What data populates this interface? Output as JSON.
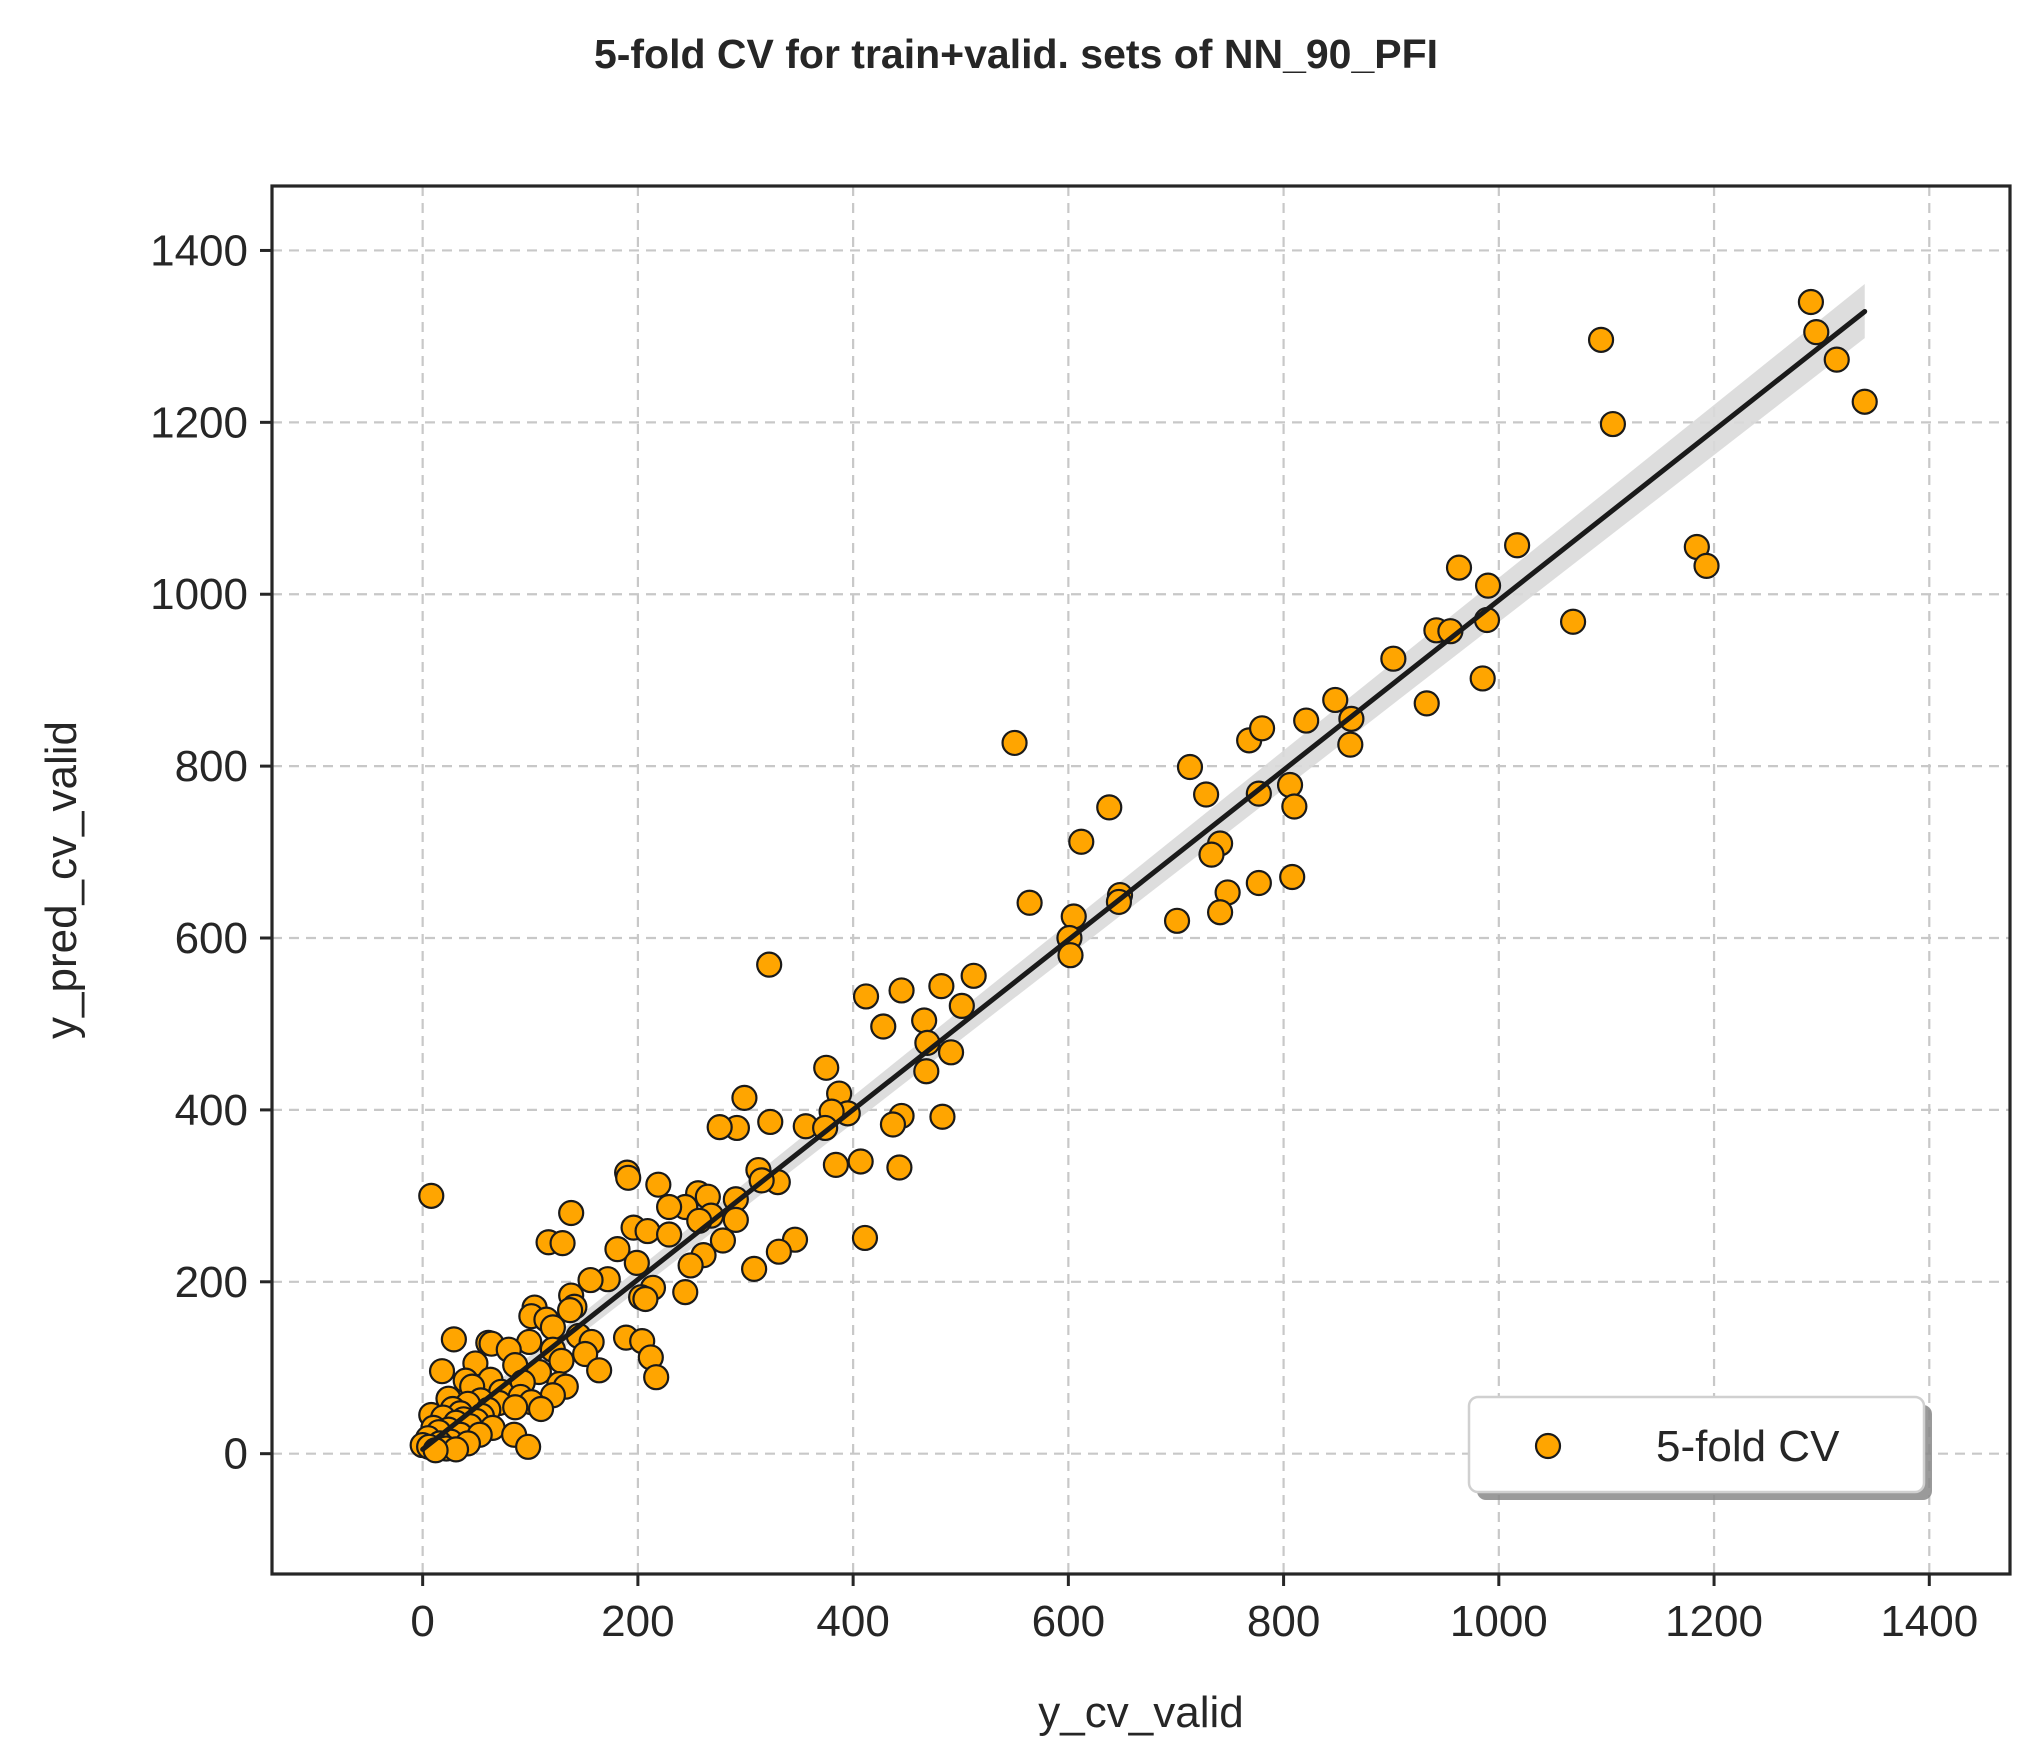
{
  "chart_data": {
    "type": "scatter",
    "title": "5-fold CV for train+valid. sets of NN_90_PFI",
    "xlabel": "y_cv_valid",
    "ylabel": "y_pred_cv_valid",
    "xlim": [
      -140,
      1475
    ],
    "ylim": [
      -140,
      1475
    ],
    "xticks": [
      0,
      200,
      400,
      600,
      800,
      1000,
      1200,
      1400
    ],
    "yticks": [
      0,
      200,
      400,
      600,
      800,
      1000,
      1200,
      1400
    ],
    "grid": true,
    "legend_position": "lower-right",
    "colors": {
      "points": "#FFA500",
      "point_edge": "#1a1a1a",
      "fit_line": "#1a1a1a",
      "confidence_band": "#d9d9d9"
    },
    "series": [
      {
        "name": "5-fold CV",
        "points": [
          [
            1290,
            1340
          ],
          [
            1295,
            1305
          ],
          [
            1314,
            1273
          ],
          [
            1340,
            1224
          ],
          [
            1095,
            1296
          ],
          [
            1106,
            1198
          ],
          [
            1017,
            1057
          ],
          [
            1184,
            1055
          ],
          [
            1193,
            1033
          ],
          [
            963,
            1031
          ],
          [
            990,
            1010
          ],
          [
            1069,
            968
          ],
          [
            989,
            970
          ],
          [
            942,
            958
          ],
          [
            955,
            957
          ],
          [
            902,
            925
          ],
          [
            933,
            873
          ],
          [
            985,
            902
          ],
          [
            848,
            877
          ],
          [
            863,
            855
          ],
          [
            821,
            853
          ],
          [
            862,
            825
          ],
          [
            550,
            827
          ],
          [
            768,
            830
          ],
          [
            780,
            844
          ],
          [
            713,
            799
          ],
          [
            728,
            767
          ],
          [
            777,
            768
          ],
          [
            806,
            778
          ],
          [
            810,
            753
          ],
          [
            638,
            752
          ],
          [
            612,
            712
          ],
          [
            741,
            710
          ],
          [
            733,
            697
          ],
          [
            777,
            664
          ],
          [
            808,
            671
          ],
          [
            748,
            653
          ],
          [
            741,
            630
          ],
          [
            648,
            650
          ],
          [
            647,
            642
          ],
          [
            564,
            641
          ],
          [
            605,
            625
          ],
          [
            701,
            620
          ],
          [
            601,
            600
          ],
          [
            602,
            580
          ],
          [
            512,
            556
          ],
          [
            322,
            569
          ],
          [
            482,
            544
          ],
          [
            445,
            539
          ],
          [
            412,
            532
          ],
          [
            501,
            521
          ],
          [
            466,
            504
          ],
          [
            428,
            497
          ],
          [
            469,
            478
          ],
          [
            491,
            467
          ],
          [
            468,
            445
          ],
          [
            375,
            449
          ],
          [
            387,
            419
          ],
          [
            299,
            414
          ],
          [
            395,
            396
          ],
          [
            380,
            398
          ],
          [
            445,
            393
          ],
          [
            483,
            392
          ],
          [
            437,
            383
          ],
          [
            356,
            381
          ],
          [
            374,
            379
          ],
          [
            292,
            379
          ],
          [
            323,
            386
          ],
          [
            276,
            380
          ],
          [
            407,
            340
          ],
          [
            443,
            333
          ],
          [
            384,
            336
          ],
          [
            312,
            330
          ],
          [
            330,
            316
          ],
          [
            315,
            318
          ],
          [
            190,
            327
          ],
          [
            191,
            321
          ],
          [
            219,
            313
          ],
          [
            256,
            303
          ],
          [
            265,
            299
          ],
          [
            291,
            296
          ],
          [
            244,
            287
          ],
          [
            229,
            287
          ],
          [
            268,
            277
          ],
          [
            291,
            272
          ],
          [
            257,
            271
          ],
          [
            196,
            263
          ],
          [
            209,
            259
          ],
          [
            229,
            255
          ],
          [
            346,
            249
          ],
          [
            331,
            235
          ],
          [
            411,
            251
          ],
          [
            279,
            248
          ],
          [
            261,
            231
          ],
          [
            249,
            219
          ],
          [
            181,
            238
          ],
          [
            117,
            246
          ],
          [
            130,
            245
          ],
          [
            138,
            280
          ],
          [
            308,
            215
          ],
          [
            199,
            222
          ],
          [
            172,
            203
          ],
          [
            214,
            193
          ],
          [
            244,
            188
          ],
          [
            203,
            182
          ],
          [
            207,
            180
          ],
          [
            156,
            202
          ],
          [
            138,
            184
          ],
          [
            141,
            171
          ],
          [
            104,
            170
          ],
          [
            137,
            167
          ],
          [
            101,
            160
          ],
          [
            115,
            156
          ],
          [
            121,
            147
          ],
          [
            61,
            129
          ],
          [
            64,
            128
          ],
          [
            29,
            133
          ],
          [
            145,
            137
          ],
          [
            189,
            135
          ],
          [
            157,
            130
          ],
          [
            204,
            131
          ],
          [
            99,
            130
          ],
          [
            80,
            121
          ],
          [
            121,
            121
          ],
          [
            151,
            116
          ],
          [
            129,
            108
          ],
          [
            212,
            112
          ],
          [
            49,
            105
          ],
          [
            86,
            103
          ],
          [
            18,
            96
          ],
          [
            164,
            97
          ],
          [
            108,
            95
          ],
          [
            217,
            89
          ],
          [
            63,
            86
          ],
          [
            40,
            85
          ],
          [
            93,
            83
          ],
          [
            127,
            81
          ],
          [
            46,
            78
          ],
          [
            133,
            78
          ],
          [
            73,
            72
          ],
          [
            121,
            68
          ],
          [
            91,
            66
          ],
          [
            24,
            64
          ],
          [
            54,
            62
          ],
          [
            101,
            60
          ],
          [
            71,
            59
          ],
          [
            42,
            58
          ],
          [
            86,
            54
          ],
          [
            28,
            52
          ],
          [
            61,
            51
          ],
          [
            110,
            52
          ],
          [
            35,
            47
          ],
          [
            8,
            45
          ],
          [
            55,
            44
          ],
          [
            19,
            42
          ],
          [
            38,
            40
          ],
          [
            31,
            36
          ],
          [
            50,
            38
          ],
          [
            44,
            32
          ],
          [
            10,
            30
          ],
          [
            65,
            30
          ],
          [
            24,
            28
          ],
          [
            15,
            25
          ],
          [
            35,
            22
          ],
          [
            53,
            22
          ],
          [
            85,
            22
          ],
          [
            5,
            18
          ],
          [
            26,
            14
          ],
          [
            16,
            12
          ],
          [
            42,
            12
          ],
          [
            0,
            10
          ],
          [
            6,
            8
          ],
          [
            22,
            6
          ],
          [
            31,
            5
          ],
          [
            12,
            4
          ],
          [
            98,
            8
          ],
          [
            8,
            300
          ]
        ]
      }
    ],
    "fit_line": {
      "x": [
        0,
        1340
      ],
      "y": [
        5,
        1329
      ]
    },
    "confidence_band": {
      "x": [
        0,
        1340
      ],
      "lower": [
        -4,
        1298
      ],
      "upper": [
        14,
        1361
      ]
    }
  }
}
